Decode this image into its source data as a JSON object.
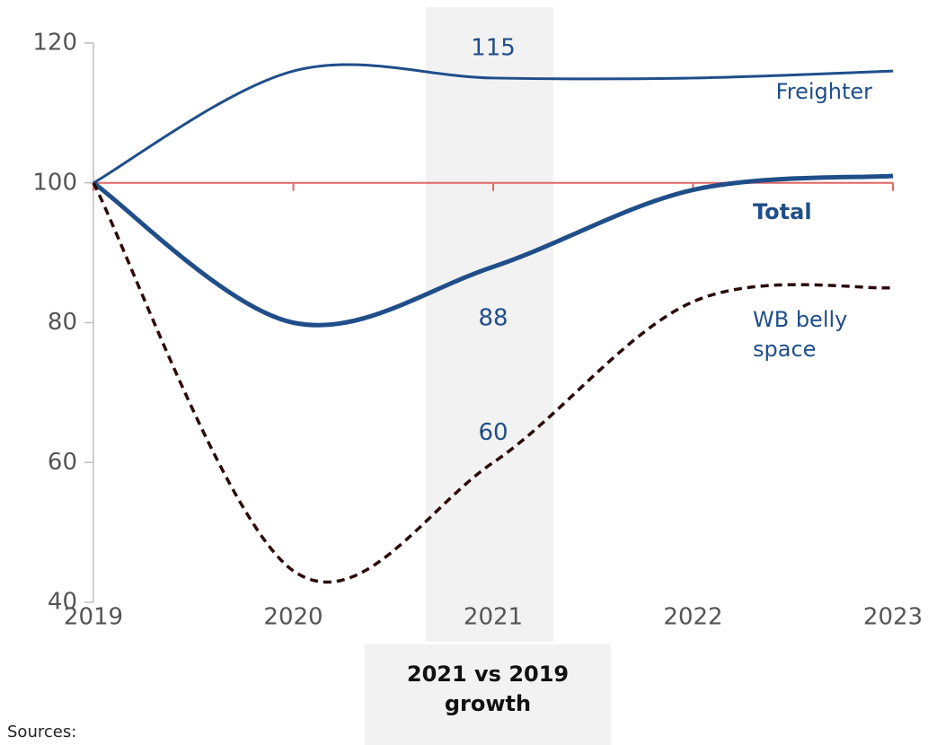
{
  "chart_data": {
    "type": "line",
    "x": [
      2019,
      2020,
      2021,
      2022,
      2023
    ],
    "series": [
      {
        "name": "Freighter",
        "color": "#1f4e89",
        "values": [
          100,
          116,
          115,
          115,
          116
        ]
      },
      {
        "name": "Total",
        "color": "#1f4e89",
        "values": [
          100,
          80,
          88,
          99,
          101
        ]
      },
      {
        "name": "WB belly space",
        "color": "#2b0a0a",
        "values": [
          100,
          44.5,
          60,
          83,
          85
        ]
      }
    ],
    "xlim": [
      2019,
      2023
    ],
    "xticks": [
      2019,
      2020,
      2021,
      2022,
      2023
    ],
    "ylim": [
      40,
      120
    ],
    "yticks": [
      40,
      60,
      80,
      100,
      120
    ],
    "baseline": 100,
    "baseline_color": "#e06666",
    "highlight_label": "2021 vs 2019 growth",
    "sources": "Sources:"
  }
}
